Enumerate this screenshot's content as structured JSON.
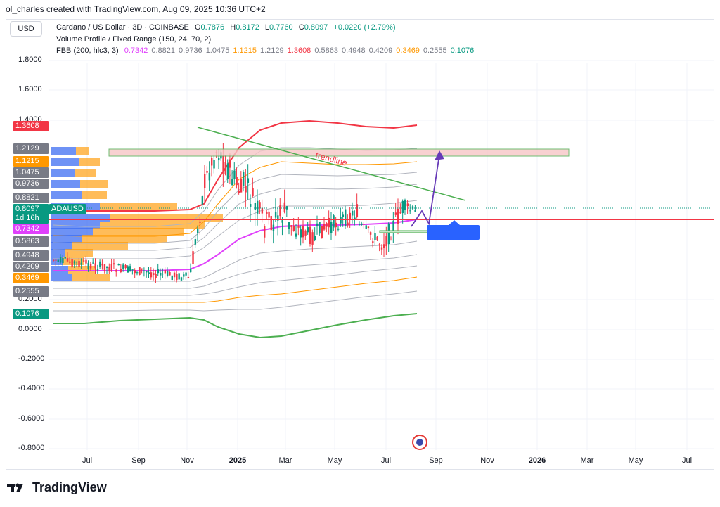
{
  "header": {
    "created_by": "ol_charles created with TradingView.com, Aug 09, 2025 10:36 UTC+2"
  },
  "currency_button": "USD",
  "legend": {
    "symbol": "Cardano / US Dollar · 3D · COINBASE",
    "o_label": "O",
    "o_value": "0.7876",
    "h_label": "H",
    "h_value": "0.8172",
    "l_label": "L",
    "l_value": "0.7760",
    "c_label": "C",
    "c_value": "0.8097",
    "change": "+0.0220 (+2.79%)",
    "vp": "Volume Profile / Fixed Range (150, 24, 70, 2)",
    "fbb_name": "FBB (200, hlc3, 3)",
    "fbb_values": [
      {
        "v": "0.7342",
        "color": "#e040fb"
      },
      {
        "v": "0.8821",
        "color": "#787b86"
      },
      {
        "v": "0.9736",
        "color": "#787b86"
      },
      {
        "v": "1.0475",
        "color": "#787b86"
      },
      {
        "v": "1.1215",
        "color": "#ff9800"
      },
      {
        "v": "1.2129",
        "color": "#787b86"
      },
      {
        "v": "1.3608",
        "color": "#f23645"
      },
      {
        "v": "0.5863",
        "color": "#787b86"
      },
      {
        "v": "0.4948",
        "color": "#787b86"
      },
      {
        "v": "0.4209",
        "color": "#787b86"
      },
      {
        "v": "0.3469",
        "color": "#ff9800"
      },
      {
        "v": "0.2555",
        "color": "#787b86"
      },
      {
        "v": "0.1076",
        "color": "#089981"
      }
    ]
  },
  "y_axis": [
    "1.8000",
    "1.6000",
    "1.4000",
    "0.2000",
    "0.0000",
    "-0.2000",
    "-0.4000",
    "-0.6000",
    "-0.8000"
  ],
  "price_tags": [
    {
      "text": "1.3608",
      "color": "#f23645"
    },
    {
      "text": "1.2129",
      "color": "#787b86"
    },
    {
      "text": "1.1215",
      "color": "#ff9800"
    },
    {
      "text": "1.0475",
      "color": "#787b86"
    },
    {
      "text": "0.9736",
      "color": "#787b86"
    },
    {
      "text": "0.8821",
      "color": "#787b86"
    },
    {
      "text": "0.8097",
      "color": "#089981"
    },
    {
      "text": "1d 16h",
      "color": "#089981"
    },
    {
      "text": "0.7342",
      "color": "#e040fb"
    },
    {
      "text": "0.5863",
      "color": "#787b86"
    },
    {
      "text": "0.4948",
      "color": "#787b86"
    },
    {
      "text": "0.4209",
      "color": "#787b86"
    },
    {
      "text": "0.3469",
      "color": "#ff9800"
    },
    {
      "text": "0.2555",
      "color": "#787b86"
    },
    {
      "text": "0.1076",
      "color": "#089981"
    }
  ],
  "symbol_tag": "ADAUSD",
  "trendline_label": "trendline",
  "x_axis": [
    {
      "t": "Jul",
      "bold": false
    },
    {
      "t": "Sep",
      "bold": false
    },
    {
      "t": "Nov",
      "bold": false
    },
    {
      "t": "2025",
      "bold": true
    },
    {
      "t": "Mar",
      "bold": false
    },
    {
      "t": "May",
      "bold": false
    },
    {
      "t": "Jul",
      "bold": false
    },
    {
      "t": "Sep",
      "bold": false
    },
    {
      "t": "Nov",
      "bold": false
    },
    {
      "t": "2026",
      "bold": true
    },
    {
      "t": "Mar",
      "bold": false
    },
    {
      "t": "May",
      "bold": false
    },
    {
      "t": "Jul",
      "bold": false
    }
  ],
  "brand": "TradingView",
  "colors": {
    "up": "#089981",
    "down": "#f23645",
    "basis": "#e040fb",
    "upper_band": "#f23645",
    "lower_band": "#4caf50",
    "mid_band": "#ff9800",
    "trendline": "#4caf50",
    "arrow": "#673ab7",
    "price_line": "#f23645"
  }
}
